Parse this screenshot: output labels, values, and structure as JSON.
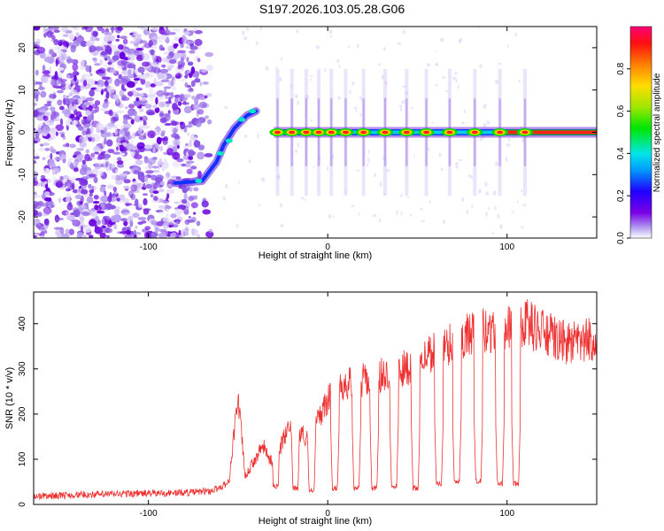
{
  "title": "S197.2026.103.05.28.G06",
  "chart_data": [
    {
      "type": "heatmap",
      "xlabel": "Height of straight line (km)",
      "ylabel": "Frequency (Hz)",
      "xlim": [
        -164,
        150
      ],
      "ylim": [
        -25,
        25
      ],
      "xticks": [
        -100,
        0,
        100
      ],
      "yticks": [
        -20,
        -10,
        0,
        10,
        20
      ],
      "colorbar": {
        "label": "Normalized spectral amplitude",
        "range": [
          0,
          1
        ],
        "ticks": [
          "0.0",
          "0.2",
          "0.4",
          "0.6",
          "0.8"
        ],
        "tick_values": [
          0.0,
          0.2,
          0.4,
          0.6,
          0.8
        ],
        "colormap": "rainbow"
      },
      "features": {
        "ridge_frequency_hz": 0,
        "ridge_start_km": -30,
        "ridge_end_km": 150,
        "hotspots_km": [
          -28,
          -20,
          -12,
          -5,
          2,
          10,
          20,
          32,
          44,
          55,
          68,
          82,
          96,
          110
        ],
        "rising_streak": [
          [
            -85,
            -12
          ],
          [
            -70,
            -11.5
          ],
          [
            -62,
            -7
          ],
          [
            -58,
            -3
          ],
          [
            -52,
            1
          ],
          [
            -45,
            4
          ],
          [
            -40,
            5
          ]
        ]
      }
    },
    {
      "type": "line",
      "xlabel": "Height of straight line (km)",
      "ylabel": "SNR (10 * v/v)",
      "xlim": [
        -164,
        150
      ],
      "ylim": [
        0,
        470
      ],
      "xticks": [
        -100,
        0,
        100
      ],
      "yticks": [
        0,
        100,
        200,
        300,
        400
      ],
      "series": [
        {
          "name": "SNR",
          "color": "#ee3030",
          "x": [
            -164,
            -150,
            -130,
            -110,
            -90,
            -75,
            -65,
            -60,
            -55,
            -52,
            -50,
            -48,
            -46,
            -42,
            -36,
            -32,
            -28,
            -24,
            -20,
            -16,
            -12,
            -8,
            -4,
            0,
            5,
            10,
            15,
            20,
            25,
            30,
            35,
            40,
            45,
            50,
            55,
            60,
            65,
            70,
            75,
            80,
            85,
            90,
            95,
            100,
            105,
            110,
            120,
            130,
            140,
            150
          ],
          "y": [
            18,
            20,
            22,
            24,
            25,
            27,
            30,
            38,
            50,
            170,
            235,
            150,
            60,
            90,
            130,
            95,
            110,
            150,
            175,
            160,
            150,
            170,
            200,
            230,
            255,
            270,
            265,
            275,
            280,
            285,
            290,
            295,
            305,
            320,
            330,
            345,
            350,
            365,
            370,
            375,
            380,
            385,
            390,
            395,
            400,
            405,
            380,
            360,
            355,
            370
          ],
          "dips": [
            {
              "x": -29,
              "y": 35
            },
            {
              "x": -18,
              "y": 30
            },
            {
              "x": -9,
              "y": 25
            },
            {
              "x": 4,
              "y": 30
            },
            {
              "x": 16,
              "y": 30
            },
            {
              "x": 26,
              "y": 30
            },
            {
              "x": 37,
              "y": 35
            },
            {
              "x": 49,
              "y": 30
            },
            {
              "x": 62,
              "y": 40
            },
            {
              "x": 72,
              "y": 45
            },
            {
              "x": 84,
              "y": 45
            },
            {
              "x": 96,
              "y": 40
            },
            {
              "x": 105,
              "y": 40
            }
          ]
        }
      ]
    }
  ]
}
